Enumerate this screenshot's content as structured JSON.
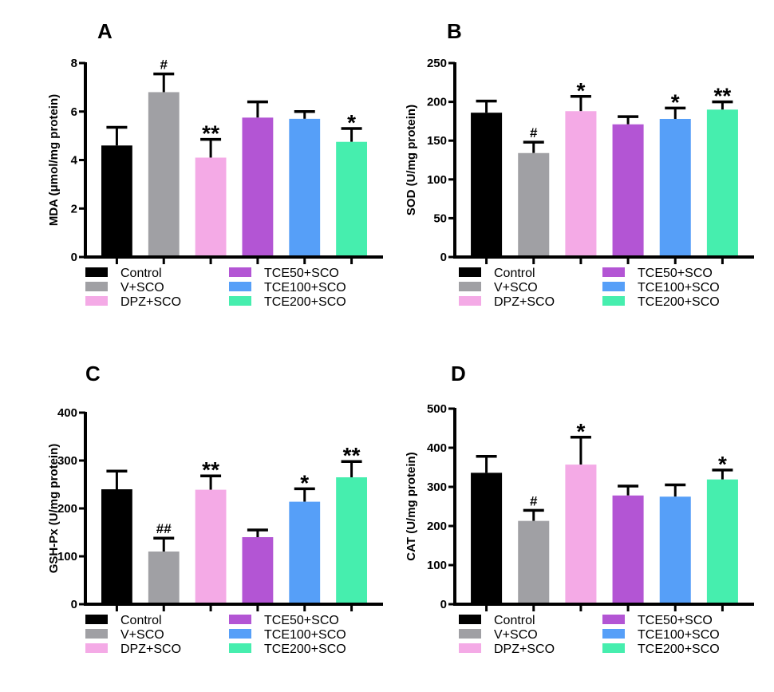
{
  "groups": [
    "Control",
    "V+SCO",
    "DPZ+SCO",
    "TCE50+SCO",
    "TCE100+SCO",
    "TCE200+SCO"
  ],
  "colors": [
    "#000000",
    "#a0a0a4",
    "#f4aae6",
    "#b355d4",
    "#569ff8",
    "#46eeae"
  ],
  "chart_data": [
    {
      "type": "bar",
      "panel": "A",
      "title": "",
      "xlabel": "",
      "ylabel": "MDA (μmol/mg protein)",
      "ylim": [
        0,
        8
      ],
      "yticks": [
        0,
        2,
        4,
        6,
        8
      ],
      "categories": [
        "Control",
        "V+SCO",
        "DPZ+SCO",
        "TCE50+SCO",
        "TCE100+SCO",
        "TCE200+SCO"
      ],
      "values": [
        4.6,
        6.8,
        4.1,
        5.75,
        5.7,
        4.75
      ],
      "error_upper": [
        5.35,
        7.55,
        4.85,
        6.4,
        6.0,
        5.3
      ],
      "significance": [
        "",
        "#",
        "**",
        "",
        "",
        "*"
      ],
      "legend": "bottom"
    },
    {
      "type": "bar",
      "panel": "B",
      "title": "",
      "xlabel": "",
      "ylabel": "SOD (U/mg protein)",
      "ylim": [
        0,
        250
      ],
      "yticks": [
        0,
        50,
        100,
        150,
        200,
        250
      ],
      "categories": [
        "Control",
        "V+SCO",
        "DPZ+SCO",
        "TCE50+SCO",
        "TCE100+SCO",
        "TCE200+SCO"
      ],
      "values": [
        186,
        134,
        188,
        171,
        178,
        190
      ],
      "error_upper": [
        201,
        148,
        207,
        181,
        192,
        200
      ],
      "significance": [
        "",
        "#",
        "*",
        "",
        "*",
        "**"
      ],
      "legend": "bottom"
    },
    {
      "type": "bar",
      "panel": "C",
      "title": "",
      "xlabel": "",
      "ylabel": "GSH-Px (U/mg protein)",
      "ylim": [
        0,
        400
      ],
      "yticks": [
        0,
        100,
        200,
        300,
        400
      ],
      "categories": [
        "Control",
        "V+SCO",
        "DPZ+SCO",
        "TCE50+SCO",
        "TCE100+SCO",
        "TCE200+SCO"
      ],
      "values": [
        240,
        110,
        239,
        140,
        214,
        265
      ],
      "error_upper": [
        278,
        138,
        268,
        155,
        241,
        298
      ],
      "significance": [
        "",
        "##",
        "**",
        "",
        "*",
        "**"
      ],
      "legend": "bottom"
    },
    {
      "type": "bar",
      "panel": "D",
      "title": "",
      "xlabel": "",
      "ylabel": "CAT (U/mg protein)",
      "ylim": [
        0,
        500
      ],
      "yticks": [
        0,
        100,
        200,
        300,
        400,
        500
      ],
      "categories": [
        "Control",
        "V+SCO",
        "DPZ+SCO",
        "TCE50+SCO",
        "TCE100+SCO",
        "TCE200+SCO"
      ],
      "values": [
        336,
        213,
        357,
        278,
        275,
        319
      ],
      "error_upper": [
        378,
        240,
        427,
        302,
        305,
        343
      ],
      "significance": [
        "",
        "#",
        "*",
        "",
        "",
        "*"
      ],
      "legend": "bottom"
    }
  ]
}
